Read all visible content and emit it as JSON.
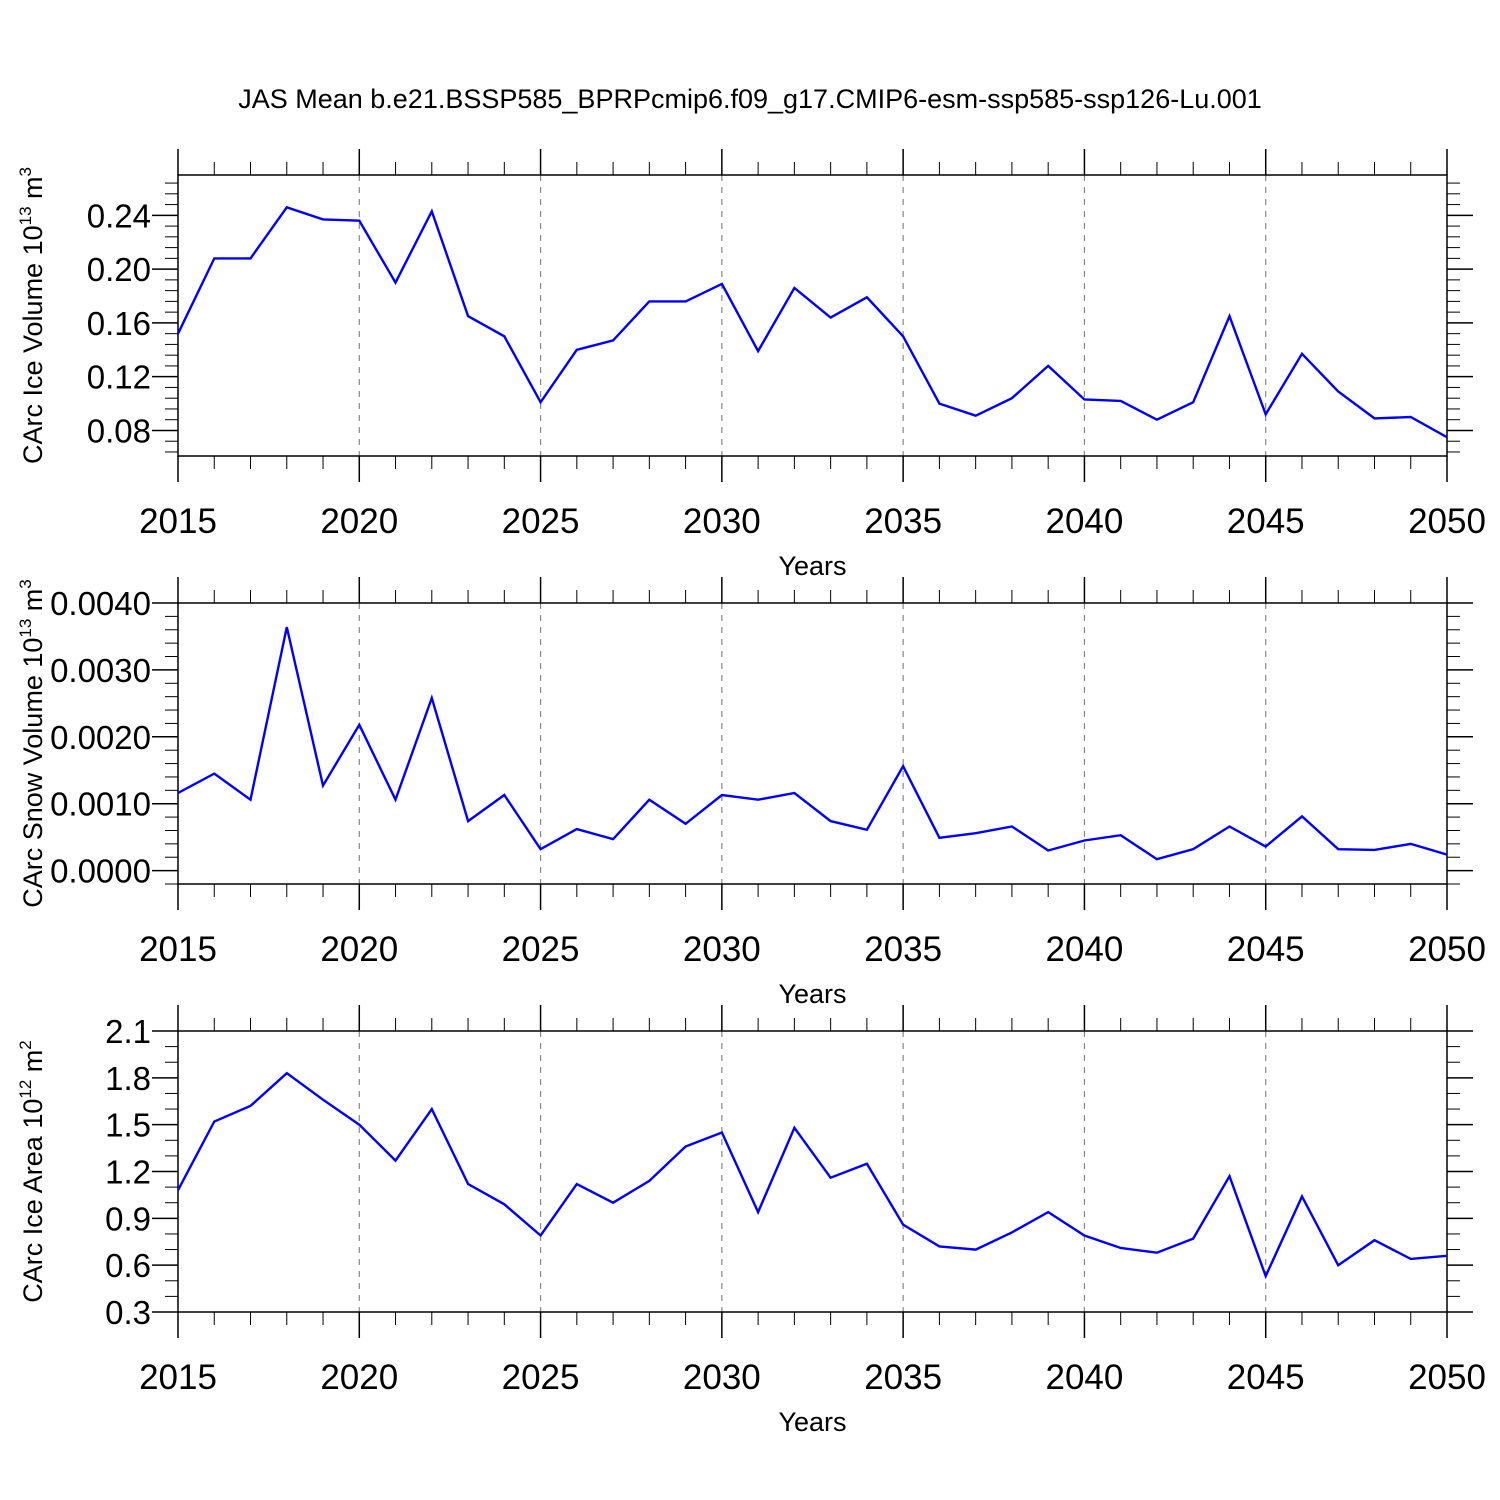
{
  "title": "JAS Mean b.e21.BSSP585_BPRPcmip6.f09_g17.CMIP6-esm-ssp585-ssp126-Lu.001",
  "line_color": "#0000ff",
  "chart_data": [
    {
      "type": "line",
      "ylabel": "CArc Ice Volume 10",
      "ylabel_exp": "13",
      "ylabel_unit": " m",
      "ylabel_unit_exp": "3",
      "xlabel": "Years",
      "xlim": [
        2015,
        2050
      ],
      "ylim": [
        0.061,
        0.27
      ],
      "yticks": [
        0.08,
        0.12,
        0.16,
        0.2,
        0.24
      ],
      "ytick_labels": [
        "0.08",
        "0.12",
        "0.16",
        "0.20",
        "0.24"
      ],
      "yminor_step": 0.008,
      "xticks": [
        2015,
        2020,
        2025,
        2030,
        2035,
        2040,
        2045,
        2050
      ],
      "xtick_labels": [
        "2015",
        "2020",
        "2025",
        "2030",
        "2035",
        "2040",
        "2045",
        "2050"
      ],
      "x": [
        2015,
        2016,
        2017,
        2018,
        2019,
        2020,
        2021,
        2022,
        2023,
        2024,
        2025,
        2026,
        2027,
        2028,
        2029,
        2030,
        2031,
        2032,
        2033,
        2034,
        2035,
        2036,
        2037,
        2038,
        2039,
        2040,
        2041,
        2042,
        2043,
        2044,
        2045,
        2046,
        2047,
        2048,
        2049,
        2050
      ],
      "values": [
        0.152,
        0.208,
        0.208,
        0.246,
        0.237,
        0.236,
        0.19,
        0.243,
        0.165,
        0.15,
        0.101,
        0.14,
        0.147,
        0.176,
        0.176,
        0.189,
        0.139,
        0.186,
        0.164,
        0.179,
        0.15,
        0.1,
        0.091,
        0.104,
        0.128,
        0.103,
        0.102,
        0.088,
        0.101,
        0.165,
        0.092,
        0.137,
        0.109,
        0.089,
        0.09,
        0.075
      ]
    },
    {
      "type": "line",
      "ylabel": "CArc Snow Volume 10",
      "ylabel_exp": "13",
      "ylabel_unit": " m",
      "ylabel_unit_exp": "3",
      "xlabel": "Years",
      "xlim": [
        2015,
        2050
      ],
      "ylim": [
        -0.0002,
        0.004
      ],
      "yticks": [
        0.0,
        0.001,
        0.002,
        0.003,
        0.004
      ],
      "ytick_labels": [
        "0.0000",
        "0.0010",
        "0.0020",
        "0.0030",
        "0.0040"
      ],
      "yminor_step": 0.0002,
      "xticks": [
        2015,
        2020,
        2025,
        2030,
        2035,
        2040,
        2045,
        2050
      ],
      "xtick_labels": [
        "2015",
        "2020",
        "2025",
        "2030",
        "2035",
        "2040",
        "2045",
        "2050"
      ],
      "x": [
        2015,
        2016,
        2017,
        2018,
        2019,
        2020,
        2021,
        2022,
        2023,
        2024,
        2025,
        2026,
        2027,
        2028,
        2029,
        2030,
        2031,
        2032,
        2033,
        2034,
        2035,
        2036,
        2037,
        2038,
        2039,
        2040,
        2041,
        2042,
        2043,
        2044,
        2045,
        2046,
        2047,
        2048,
        2049,
        2050
      ],
      "values": [
        0.00116,
        0.00145,
        0.00106,
        0.00364,
        0.00127,
        0.00218,
        0.00106,
        0.00258,
        0.00074,
        0.00113,
        0.00032,
        0.00062,
        0.00047,
        0.00106,
        0.0007,
        0.00113,
        0.00106,
        0.00116,
        0.00074,
        0.00061,
        0.00156,
        0.00049,
        0.00056,
        0.00066,
        0.0003,
        0.00045,
        0.00053,
        0.00017,
        0.00032,
        0.00066,
        0.00036,
        0.00081,
        0.00032,
        0.00031,
        0.0004,
        0.00024
      ]
    },
    {
      "type": "line",
      "ylabel": "CArc Ice Area 10",
      "ylabel_exp": "12",
      "ylabel_unit": " m",
      "ylabel_unit_exp": "2",
      "xlabel": "Years",
      "xlim": [
        2015,
        2050
      ],
      "ylim": [
        0.3,
        2.1
      ],
      "yticks": [
        0.3,
        0.6,
        0.9,
        1.2,
        1.5,
        1.8,
        2.1
      ],
      "ytick_labels": [
        "0.3",
        "0.6",
        "0.9",
        "1.2",
        "1.5",
        "1.8",
        "2.1"
      ],
      "yminor_step": 0.1,
      "xticks": [
        2015,
        2020,
        2025,
        2030,
        2035,
        2040,
        2045,
        2050
      ],
      "xtick_labels": [
        "2015",
        "2020",
        "2025",
        "2030",
        "2035",
        "2040",
        "2045",
        "2050"
      ],
      "x": [
        2015,
        2016,
        2017,
        2018,
        2019,
        2020,
        2021,
        2022,
        2023,
        2024,
        2025,
        2026,
        2027,
        2028,
        2029,
        2030,
        2031,
        2032,
        2033,
        2034,
        2035,
        2036,
        2037,
        2038,
        2039,
        2040,
        2041,
        2042,
        2043,
        2044,
        2045,
        2046,
        2047,
        2048,
        2049,
        2050
      ],
      "values": [
        1.08,
        1.52,
        1.62,
        1.83,
        1.66,
        1.5,
        1.27,
        1.6,
        1.12,
        0.99,
        0.79,
        1.12,
        1.0,
        1.14,
        1.36,
        1.45,
        0.94,
        1.48,
        1.16,
        1.25,
        0.86,
        0.72,
        0.7,
        0.81,
        0.94,
        0.79,
        0.71,
        0.68,
        0.77,
        1.17,
        0.53,
        1.04,
        0.6,
        0.76,
        0.64,
        0.66
      ]
    }
  ]
}
